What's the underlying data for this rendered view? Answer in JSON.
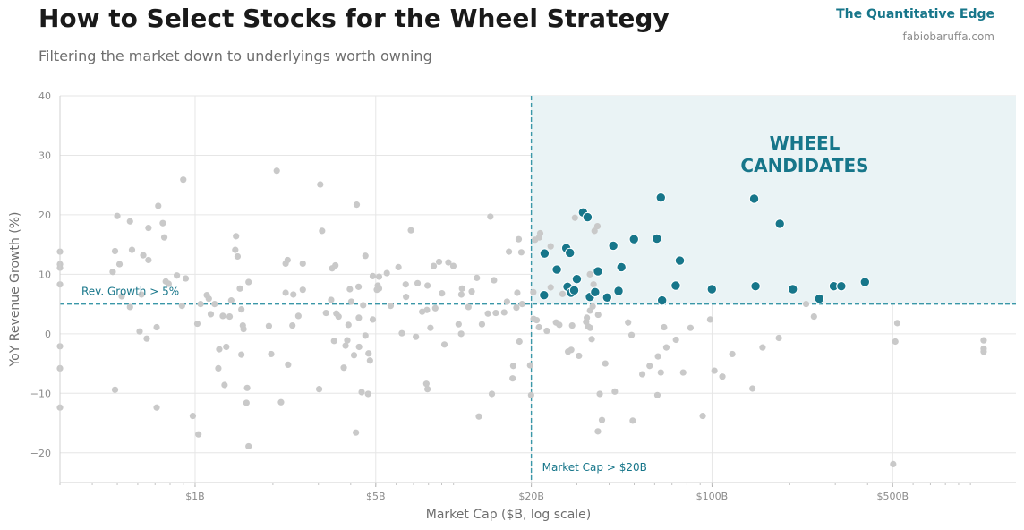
{
  "header": {
    "title": "How to Select Stocks for the Wheel Strategy",
    "subtitle": "Filtering the market down to underlyings worth owning",
    "brand": "The Quantitative Edge",
    "site": "fabiobaruffa.com"
  },
  "colors": {
    "candidate": "#17768a",
    "other": "#c9c9c9",
    "region": "#eaf3f5",
    "threshold": "#3a97a8",
    "grid": "#e6e6e6"
  },
  "chart_data": {
    "type": "scatter",
    "xlabel": "Market Cap ($B, log scale)",
    "ylabel": "YoY Revenue Growth (%)",
    "x_scale": "log",
    "xlim": [
      0.3,
      1500
    ],
    "ylim": [
      -25,
      40
    ],
    "x_ticks": [
      {
        "value": 1,
        "label": "$1B"
      },
      {
        "value": 5,
        "label": "$5B"
      },
      {
        "value": 20,
        "label": "$20B"
      },
      {
        "value": 100,
        "label": "$100B"
      },
      {
        "value": 500,
        "label": "$500B"
      }
    ],
    "y_ticks": [
      -20,
      -10,
      0,
      10,
      20,
      30,
      40
    ],
    "grid": true,
    "thresholds": {
      "market_cap": {
        "value": 20,
        "label": "Market Cap > $20B"
      },
      "revenue_growth": {
        "value": 5,
        "label": "Rev. Growth > 5%"
      }
    },
    "region_label": [
      "WHEEL",
      "CANDIDATES"
    ],
    "series": [
      {
        "role": "candidates",
        "points": [
          [
            22.5,
            13.5
          ],
          [
            22.4,
            6.5
          ],
          [
            25.1,
            10.8
          ],
          [
            27.3,
            14.4
          ],
          [
            28.2,
            13.6
          ],
          [
            27.6,
            7.9
          ],
          [
            28.5,
            6.9
          ],
          [
            29.3,
            7.3
          ],
          [
            30.0,
            9.2
          ],
          [
            31.7,
            20.4
          ],
          [
            33.0,
            19.6
          ],
          [
            33.7,
            6.2
          ],
          [
            35.3,
            7.0
          ],
          [
            36.2,
            10.5
          ],
          [
            39.3,
            6.1
          ],
          [
            41.5,
            14.8
          ],
          [
            43.5,
            7.2
          ],
          [
            44.6,
            11.2
          ],
          [
            49.9,
            15.9
          ],
          [
            61.2,
            16.0
          ],
          [
            63.4,
            22.9
          ],
          [
            64.1,
            5.6
          ],
          [
            72.4,
            8.1
          ],
          [
            75.1,
            12.3
          ],
          [
            99.9,
            7.5
          ],
          [
            145.6,
            22.7
          ],
          [
            147.4,
            8.0
          ],
          [
            183.0,
            18.5
          ],
          [
            205.4,
            7.5
          ],
          [
            260.2,
            5.9
          ],
          [
            296.0,
            8.0
          ],
          [
            316.4,
            8.0
          ],
          [
            390.7,
            8.7
          ]
        ]
      },
      {
        "role": "others",
        "points": [
          [
            0.3,
            13.8
          ],
          [
            0.3,
            11.7
          ],
          [
            0.3,
            11.1
          ],
          [
            0.3,
            8.3
          ],
          [
            0.3,
            -2.1
          ],
          [
            0.3,
            -5.8
          ],
          [
            0.3,
            -12.4
          ],
          [
            0.49,
            -9.4
          ],
          [
            0.49,
            13.9
          ],
          [
            0.5,
            19.8
          ],
          [
            0.51,
            11.7
          ],
          [
            0.52,
            6.3
          ],
          [
            0.48,
            10.4
          ],
          [
            0.56,
            18.9
          ],
          [
            0.57,
            14.1
          ],
          [
            0.56,
            4.5
          ],
          [
            0.61,
            0.4
          ],
          [
            0.62,
            6.6
          ],
          [
            0.63,
            13.2
          ],
          [
            0.65,
            -0.8
          ],
          [
            0.66,
            12.4
          ],
          [
            0.66,
            17.8
          ],
          [
            0.71,
            -12.4
          ],
          [
            0.72,
            21.5
          ],
          [
            0.71,
            1.1
          ],
          [
            0.75,
            18.6
          ],
          [
            0.77,
            8.8
          ],
          [
            0.76,
            16.2
          ],
          [
            0.79,
            8.4
          ],
          [
            0.85,
            9.8
          ],
          [
            0.89,
            4.7
          ],
          [
            0.9,
            25.9
          ],
          [
            0.92,
            9.3
          ],
          [
            0.98,
            -13.8
          ],
          [
            1.03,
            -16.9
          ],
          [
            1.02,
            1.7
          ],
          [
            1.05,
            5.0
          ],
          [
            1.11,
            6.5
          ],
          [
            1.13,
            5.9
          ],
          [
            1.15,
            3.3
          ],
          [
            1.19,
            5.0
          ],
          [
            1.23,
            -5.8
          ],
          [
            1.24,
            -2.6
          ],
          [
            1.28,
            3.0
          ],
          [
            1.3,
            -8.6
          ],
          [
            1.32,
            -2.2
          ],
          [
            1.36,
            2.9
          ],
          [
            1.38,
            5.6
          ],
          [
            1.43,
            14.1
          ],
          [
            1.44,
            16.4
          ],
          [
            1.46,
            13.0
          ],
          [
            1.49,
            7.6
          ],
          [
            1.51,
            4.1
          ],
          [
            1.51,
            -3.5
          ],
          [
            1.53,
            1.4
          ],
          [
            1.54,
            0.8
          ],
          [
            1.58,
            -11.6
          ],
          [
            1.59,
            -9.1
          ],
          [
            1.61,
            -18.9
          ],
          [
            1.61,
            8.7
          ],
          [
            1.93,
            1.3
          ],
          [
            1.97,
            -3.4
          ],
          [
            2.07,
            27.4
          ],
          [
            2.15,
            -11.5
          ],
          [
            2.24,
            11.8
          ],
          [
            2.24,
            6.9
          ],
          [
            2.28,
            12.4
          ],
          [
            2.29,
            -5.2
          ],
          [
            2.38,
            1.4
          ],
          [
            2.4,
            6.6
          ],
          [
            2.51,
            3.0
          ],
          [
            2.61,
            7.4
          ],
          [
            2.61,
            11.8
          ],
          [
            3.02,
            -9.3
          ],
          [
            3.05,
            25.1
          ],
          [
            3.1,
            17.3
          ],
          [
            3.21,
            3.5
          ],
          [
            3.36,
            5.7
          ],
          [
            3.39,
            11.0
          ],
          [
            3.45,
            -1.2
          ],
          [
            3.49,
            11.5
          ],
          [
            3.52,
            3.4
          ],
          [
            3.59,
            2.9
          ],
          [
            3.76,
            -5.7
          ],
          [
            3.82,
            -2.0
          ],
          [
            3.88,
            -1.1
          ],
          [
            3.92,
            1.5
          ],
          [
            3.97,
            7.5
          ],
          [
            4.02,
            5.4
          ],
          [
            4.12,
            -3.6
          ],
          [
            4.19,
            -16.6
          ],
          [
            4.22,
            21.7
          ],
          [
            4.29,
            7.9
          ],
          [
            4.3,
            2.7
          ],
          [
            4.31,
            -2.2
          ],
          [
            4.41,
            -9.8
          ],
          [
            4.47,
            4.8
          ],
          [
            4.56,
            13.1
          ],
          [
            4.56,
            -0.3
          ],
          [
            4.67,
            -10.1
          ],
          [
            4.69,
            -3.3
          ],
          [
            4.75,
            -4.5
          ],
          [
            4.87,
            2.4
          ],
          [
            4.87,
            9.7
          ],
          [
            5.05,
            7.4
          ],
          [
            5.09,
            8.1
          ],
          [
            5.15,
            7.6
          ],
          [
            5.15,
            9.6
          ],
          [
            5.52,
            10.2
          ],
          [
            5.71,
            4.7
          ],
          [
            6.12,
            11.2
          ],
          [
            6.31,
            0.1
          ],
          [
            6.53,
            8.3
          ],
          [
            6.55,
            6.2
          ],
          [
            6.84,
            17.4
          ],
          [
            7.15,
            -0.5
          ],
          [
            7.26,
            8.5
          ],
          [
            7.56,
            3.7
          ],
          [
            7.85,
            -8.4
          ],
          [
            7.93,
            -9.3
          ],
          [
            7.89,
            4.0
          ],
          [
            7.93,
            8.1
          ],
          [
            8.14,
            1.0
          ],
          [
            8.38,
            11.4
          ],
          [
            8.5,
            4.3
          ],
          [
            8.79,
            12.1
          ],
          [
            9.02,
            6.8
          ],
          [
            9.22,
            -1.8
          ],
          [
            9.55,
            12.0
          ],
          [
            9.98,
            11.4
          ],
          [
            10.46,
            1.6
          ],
          [
            10.7,
            0.0
          ],
          [
            10.72,
            6.6
          ],
          [
            10.79,
            7.6
          ],
          [
            11.42,
            4.5
          ],
          [
            11.76,
            7.1
          ],
          [
            12.31,
            9.4
          ],
          [
            12.53,
            -13.9
          ],
          [
            12.88,
            1.6
          ],
          [
            13.58,
            3.4
          ],
          [
            13.88,
            19.7
          ],
          [
            14.07,
            -10.1
          ],
          [
            14.34,
            9.0
          ],
          [
            14.57,
            3.5
          ],
          [
            15.7,
            3.6
          ],
          [
            16.1,
            5.4
          ],
          [
            16.38,
            13.8
          ],
          [
            16.93,
            -7.5
          ],
          [
            17.02,
            -5.4
          ],
          [
            17.51,
            4.4
          ],
          [
            17.65,
            6.9
          ],
          [
            17.98,
            -1.3
          ],
          [
            17.87,
            15.9
          ],
          [
            18.29,
            13.7
          ],
          [
            18.42,
            5.0
          ],
          [
            19.79,
            -5.3
          ],
          [
            19.96,
            -10.3
          ],
          [
            20.41,
            2.5
          ],
          [
            20.36,
            7.0
          ],
          [
            20.66,
            15.8
          ],
          [
            20.97,
            2.3
          ],
          [
            21.4,
            1.1
          ],
          [
            21.44,
            16.2
          ],
          [
            21.64,
            16.9
          ],
          [
            22.95,
            0.5
          ],
          [
            23.76,
            7.8
          ],
          [
            23.76,
            14.7
          ],
          [
            24.92,
            1.9
          ],
          [
            25.35,
            11.0
          ],
          [
            25.67,
            1.5
          ],
          [
            26.41,
            6.7
          ],
          [
            27.73,
            -3.0
          ],
          [
            28.53,
            -2.7
          ],
          [
            28.77,
            1.4
          ],
          [
            29.49,
            19.5
          ],
          [
            30.57,
            -3.7
          ],
          [
            32.58,
            2.0
          ],
          [
            32.79,
            2.7
          ],
          [
            33.23,
            1.2
          ],
          [
            33.77,
            1.0
          ],
          [
            33.74,
            3.9
          ],
          [
            34.25,
            -0.9
          ],
          [
            34.54,
            4.6
          ],
          [
            33.71,
            10.0
          ],
          [
            34.81,
            8.3
          ],
          [
            35.12,
            17.3
          ],
          [
            36.04,
            18.1
          ],
          [
            36.27,
            3.2
          ],
          [
            36.18,
            -16.4
          ],
          [
            36.79,
            -10.1
          ],
          [
            37.52,
            -14.5
          ],
          [
            38.65,
            -5.0
          ],
          [
            42.07,
            -9.7
          ],
          [
            47.36,
            1.9
          ],
          [
            48.84,
            -0.2
          ],
          [
            49.34,
            -14.6
          ],
          [
            53.75,
            -6.8
          ],
          [
            57.37,
            -5.4
          ],
          [
            61.49,
            -10.3
          ],
          [
            61.81,
            -3.8
          ],
          [
            63.39,
            -6.5
          ],
          [
            65.25,
            1.1
          ],
          [
            66.58,
            -2.3
          ],
          [
            72.53,
            -1.0
          ],
          [
            77.36,
            -6.5
          ],
          [
            82.56,
            1.0
          ],
          [
            92.07,
            -13.8
          ],
          [
            248.0,
            2.9
          ],
          [
            231.3,
            5.0
          ],
          [
            181.4,
            -0.7
          ],
          [
            156.9,
            -2.3
          ],
          [
            143.4,
            -9.2
          ],
          [
            119.8,
            -3.4
          ],
          [
            109.7,
            -7.2
          ],
          [
            102.2,
            -6.2
          ],
          [
            98.4,
            2.4
          ],
          [
            502.4,
            -21.9
          ],
          [
            512.1,
            -1.3
          ],
          [
            521.1,
            1.8
          ],
          [
            1125,
            -1.1
          ],
          [
            1125,
            -2.5
          ],
          [
            1125,
            -3.0
          ]
        ]
      }
    ]
  }
}
